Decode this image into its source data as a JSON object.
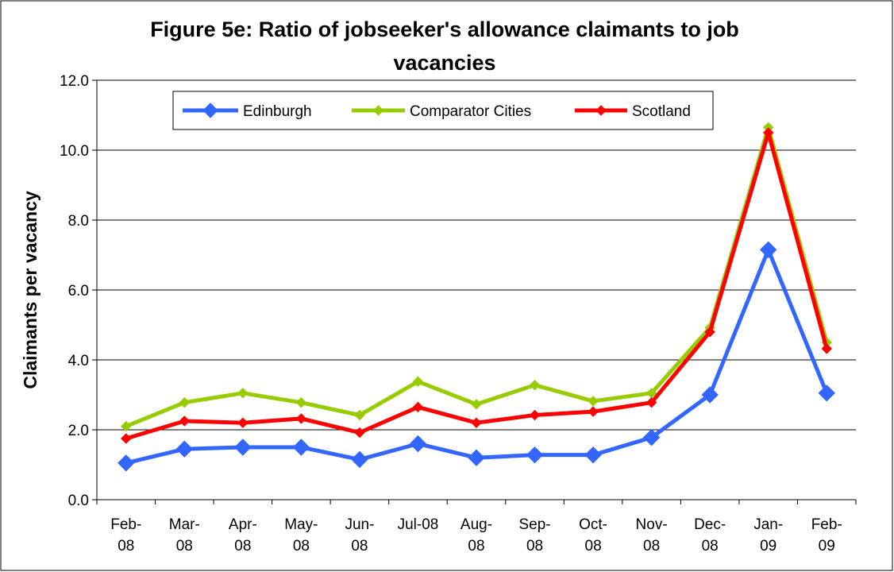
{
  "chart_data": {
    "type": "line",
    "title_line1": "Figure 5e: Ratio of jobseeker's allowance claimants to job",
    "title_line2": "vacancies",
    "ylabel": "Claimants per vacancy",
    "xlabel": "",
    "ylim": [
      0,
      12
    ],
    "yticks": [
      "0.0",
      "2.0",
      "4.0",
      "6.0",
      "8.0",
      "10.0",
      "12.0"
    ],
    "grid": true,
    "legend_position": "top",
    "categories": [
      [
        "Feb-",
        "08"
      ],
      [
        "Mar-",
        "08"
      ],
      [
        "Apr-",
        "08"
      ],
      [
        "May-",
        "08"
      ],
      [
        "Jun-",
        "08"
      ],
      [
        "Jul-08",
        ""
      ],
      [
        "Aug-",
        "08"
      ],
      [
        "Sep-",
        "08"
      ],
      [
        "Oct-",
        "08"
      ],
      [
        "Nov-",
        "08"
      ],
      [
        "Dec-",
        "08"
      ],
      [
        "Jan-",
        "09"
      ],
      [
        "Feb-",
        "09"
      ]
    ],
    "series": [
      {
        "name": "Edinburgh",
        "color": "#3366ff",
        "marker": "diamond-large",
        "values": [
          1.05,
          1.45,
          1.5,
          1.5,
          1.15,
          1.6,
          1.2,
          1.28,
          1.28,
          1.78,
          3.0,
          7.15,
          3.05
        ]
      },
      {
        "name": "Comparator Cities",
        "color": "#99cc00",
        "marker": "diamond",
        "values": [
          2.1,
          2.78,
          3.05,
          2.78,
          2.42,
          3.38,
          2.73,
          3.28,
          2.82,
          3.05,
          4.92,
          10.65,
          4.5
        ]
      },
      {
        "name": "Scotland",
        "color": "#ff0000",
        "marker": "diamond",
        "values": [
          1.75,
          2.25,
          2.2,
          2.32,
          1.92,
          2.65,
          2.2,
          2.42,
          2.52,
          2.78,
          4.8,
          10.5,
          4.32
        ]
      }
    ]
  }
}
